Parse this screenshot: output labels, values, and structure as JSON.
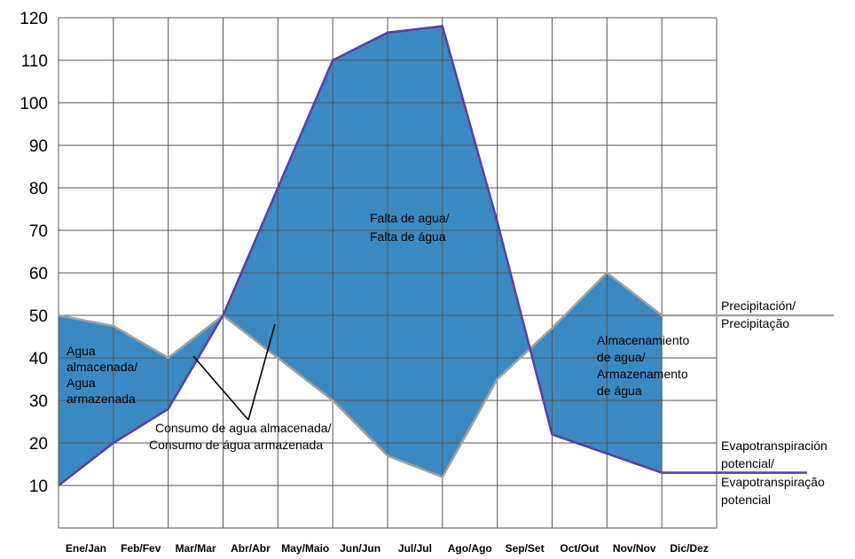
{
  "chart_data": {
    "type": "area",
    "categories": [
      "Ene/Jan",
      "Feb/Fev",
      "Mar/Mar",
      "Abr/Abr",
      "May/Maio",
      "Jun/Jun",
      "Jul/Jul",
      "Ago/Ago",
      "Sep/Set",
      "Oct/Out",
      "Nov/Nov",
      "Dic/Dez"
    ],
    "ylim": [
      0,
      120
    ],
    "yticks": [
      10,
      20,
      30,
      40,
      50,
      60,
      70,
      80,
      90,
      100,
      110,
      120
    ],
    "grid": true,
    "series": [
      {
        "name": "Precipitación/ Precipitação",
        "values": [
          50,
          47.5,
          40,
          50,
          40,
          30,
          17,
          12,
          35,
          47,
          60,
          50
        ]
      },
      {
        "name": "Evapotranspiración potencial/ Evapotranspiração potencial",
        "values": [
          10,
          20,
          28,
          50,
          80,
          110,
          116.5,
          118,
          72,
          22,
          17.5,
          13
        ]
      }
    ],
    "colors": {
      "fill": "#3b89c2",
      "precipitation": "#a0a0a0",
      "evapotranspiration": "#5b3fa6",
      "grid": "#555555"
    },
    "labels": {
      "precipitation": [
        "Precipitación/",
        "Precipitação"
      ],
      "evapotranspiration": [
        "Evapotranspiración",
        "potencial/",
        "Evapotranspiração",
        "potencial"
      ],
      "stored": [
        "Agua",
        "almacenada/",
        "Agua",
        "armazenada"
      ],
      "shortage": [
        "Falta de agua/",
        "Falta de água"
      ],
      "storage": [
        "Almacenamiento",
        "de agua/",
        "Armazenamento",
        "de água"
      ],
      "consumption": [
        "Consumo de agua almacenada/",
        "Consumo de água armazenada"
      ]
    }
  }
}
